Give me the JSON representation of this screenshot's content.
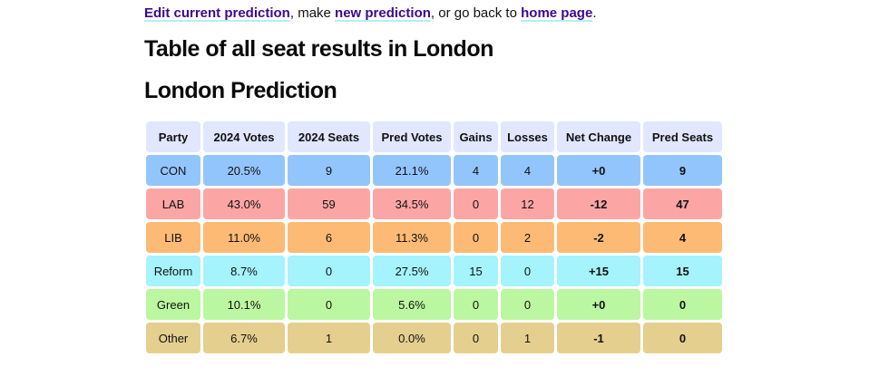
{
  "nav": {
    "edit_link": "Edit current prediction",
    "text1": ", make ",
    "new_link": "new prediction",
    "text2": ", or go back to ",
    "home_link": "home page",
    "text3": "."
  },
  "headings": {
    "title": "Table of all seat results in London",
    "subtitle": "London Prediction"
  },
  "table": {
    "headers": [
      "Party",
      "2024 Votes",
      "2024 Seats",
      "Pred Votes",
      "Gains",
      "Losses",
      "Net Change",
      "Pred Seats"
    ],
    "rows": [
      {
        "party": "CON",
        "votes_2024": "20.5%",
        "seats_2024": "9",
        "pred_votes": "21.1%",
        "gains": "4",
        "losses": "4",
        "net_change": "+0",
        "pred_seats": "9",
        "color": "#93c5fd"
      },
      {
        "party": "LAB",
        "votes_2024": "43.0%",
        "seats_2024": "59",
        "pred_votes": "34.5%",
        "gains": "0",
        "losses": "12",
        "net_change": "-12",
        "pred_seats": "47",
        "color": "#fca5a5"
      },
      {
        "party": "LIB",
        "votes_2024": "11.0%",
        "seats_2024": "6",
        "pred_votes": "11.3%",
        "gains": "0",
        "losses": "2",
        "net_change": "-2",
        "pred_seats": "4",
        "color": "#fdba74"
      },
      {
        "party": "Reform",
        "votes_2024": "8.7%",
        "seats_2024": "0",
        "pred_votes": "27.5%",
        "gains": "15",
        "losses": "0",
        "net_change": "+15",
        "pred_seats": "15",
        "color": "#a5f3fc"
      },
      {
        "party": "Green",
        "votes_2024": "10.1%",
        "seats_2024": "0",
        "pred_votes": "5.6%",
        "gains": "0",
        "losses": "0",
        "net_change": "+0",
        "pred_seats": "0",
        "color": "#bbf7a0"
      },
      {
        "party": "Other",
        "votes_2024": "6.7%",
        "seats_2024": "1",
        "pred_votes": "0.0%",
        "gains": "0",
        "losses": "1",
        "net_change": "-1",
        "pred_seats": "0",
        "color": "#e5cf8f"
      }
    ]
  },
  "colors": {
    "link": "#3b0a8c",
    "header_bg": "#e0e7ff"
  }
}
